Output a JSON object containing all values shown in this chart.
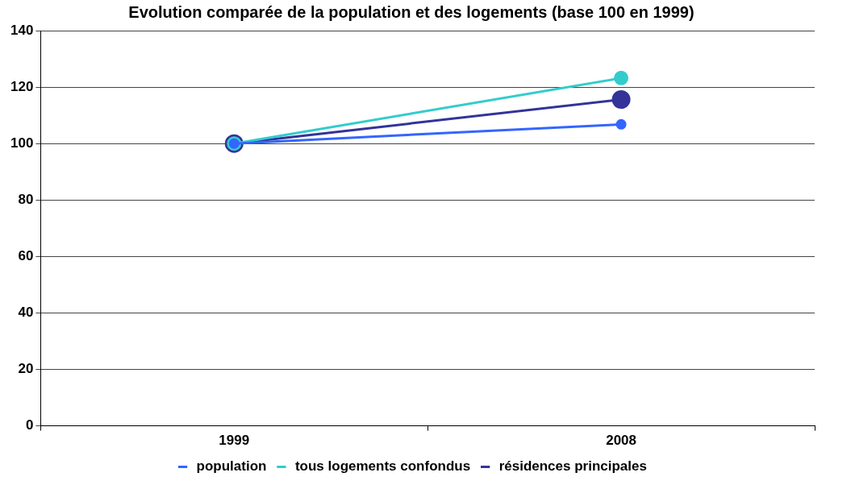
{
  "chart_data": {
    "type": "line",
    "title": "Evolution comparée de la population et des logements (base 100 en 1999)",
    "categories": [
      "1999",
      "2008"
    ],
    "series": [
      {
        "name": "population",
        "color": "#3366ff",
        "values": [
          100,
          106.8
        ]
      },
      {
        "name": "tous logements confondus",
        "color": "#33cccc",
        "values": [
          100,
          123.2
        ]
      },
      {
        "name": "résidences principales",
        "color": "#333399",
        "values": [
          100,
          115.6
        ]
      }
    ],
    "ylim": [
      0,
      140
    ],
    "yticks": [
      0,
      20,
      40,
      60,
      80,
      100,
      120,
      140
    ],
    "grid": "y",
    "legend": "bottom",
    "marker": "circle",
    "line_style": "solid"
  }
}
